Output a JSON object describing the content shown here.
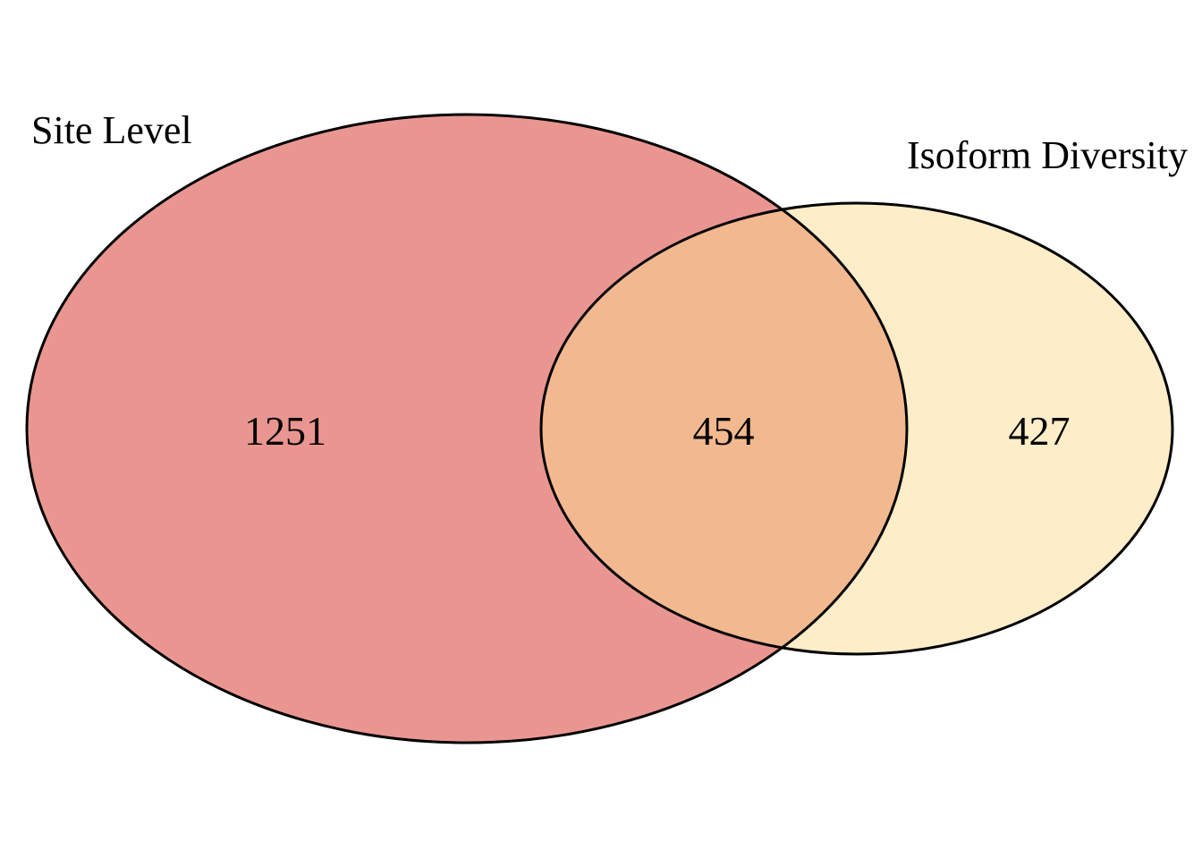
{
  "diagram": {
    "type": "venn",
    "sets": [
      {
        "name": "Site Level",
        "only_count": "1251",
        "color": "#EA9690"
      },
      {
        "name": "Isoform Diversity",
        "only_count": "427",
        "color": "#FDEDC8"
      }
    ],
    "intersection": {
      "count": "454",
      "color": "#F2B990"
    },
    "outline_color": "#000000"
  }
}
